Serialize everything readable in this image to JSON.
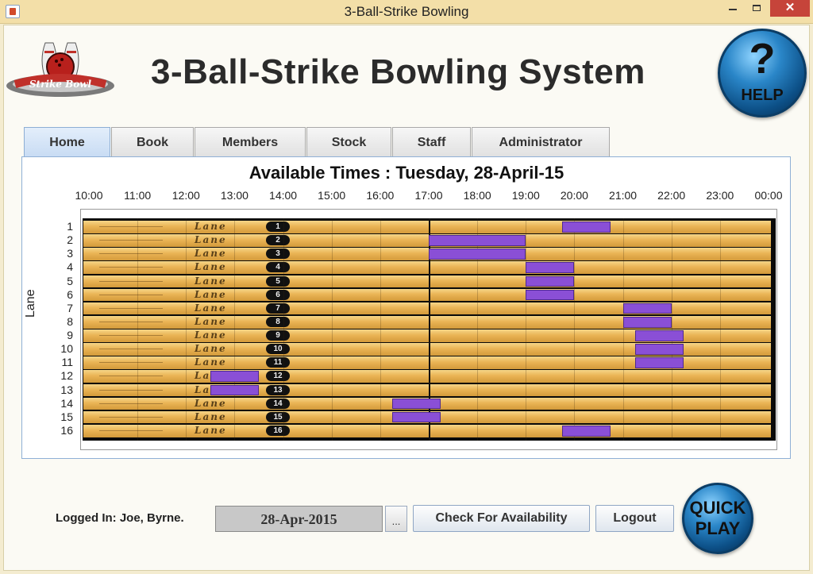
{
  "window": {
    "title": "3-Ball-Strike Bowling"
  },
  "header": {
    "title": "3-Ball-Strike Bowling System",
    "help_symbol": "?",
    "help_label": "HELP"
  },
  "tabs": [
    {
      "label": "Home",
      "active": true
    },
    {
      "label": "Book",
      "active": false
    },
    {
      "label": "Members",
      "active": false
    },
    {
      "label": "Stock",
      "active": false
    },
    {
      "label": "Staff",
      "active": false
    },
    {
      "label": "Administrator",
      "active": false
    }
  ],
  "chart_data": {
    "type": "gantt",
    "title": "Available Times : Tuesday, 28-April-15",
    "ylabel": "Lane",
    "x_ticks": [
      "10:00",
      "11:00",
      "12:00",
      "13:00",
      "14:00",
      "15:00",
      "16:00",
      "17:00",
      "18:00",
      "19:00",
      "20:00",
      "21:00",
      "22:00",
      "23:00",
      "00:00"
    ],
    "x_range_hours": [
      10,
      24
    ],
    "lanes": [
      "1",
      "2",
      "3",
      "4",
      "5",
      "6",
      "7",
      "8",
      "9",
      "10",
      "11",
      "12",
      "13",
      "14",
      "15",
      "16"
    ],
    "lane_image_text": "Lane",
    "current_time_hour": 17.0,
    "bookings": [
      {
        "lane": 1,
        "start": 19.75,
        "end": 20.75
      },
      {
        "lane": 2,
        "start": 17.0,
        "end": 19.0
      },
      {
        "lane": 3,
        "start": 17.0,
        "end": 19.0
      },
      {
        "lane": 4,
        "start": 19.0,
        "end": 20.0
      },
      {
        "lane": 5,
        "start": 19.0,
        "end": 20.0
      },
      {
        "lane": 6,
        "start": 19.0,
        "end": 20.0
      },
      {
        "lane": 7,
        "start": 21.0,
        "end": 22.0
      },
      {
        "lane": 8,
        "start": 21.0,
        "end": 22.0
      },
      {
        "lane": 9,
        "start": 21.25,
        "end": 22.25
      },
      {
        "lane": 10,
        "start": 21.25,
        "end": 22.25
      },
      {
        "lane": 11,
        "start": 21.25,
        "end": 22.25
      },
      {
        "lane": 12,
        "start": 12.5,
        "end": 13.5
      },
      {
        "lane": 13,
        "start": 12.5,
        "end": 13.5
      },
      {
        "lane": 14,
        "start": 16.25,
        "end": 17.25
      },
      {
        "lane": 15,
        "start": 16.25,
        "end": 17.25
      },
      {
        "lane": 16,
        "start": 19.75,
        "end": 20.75
      }
    ],
    "colors": {
      "booking": "#8a4fd6",
      "lane": "#eab455",
      "background": "#0a0a0a"
    }
  },
  "footer": {
    "logged_in_text": "Logged In: Joe, Byrne.",
    "date_value": "28-Apr-2015",
    "date_picker_label": "...",
    "check_label": "Check For Availability",
    "logout_label": "Logout",
    "quickplay_line1": "QUICK",
    "quickplay_line2": "PLAY"
  },
  "icons": {
    "app_icon": "java-cup-icon",
    "logo": "bowling-pins-logo",
    "help": "help-question-icon",
    "quickplay": "quick-play-icon"
  }
}
